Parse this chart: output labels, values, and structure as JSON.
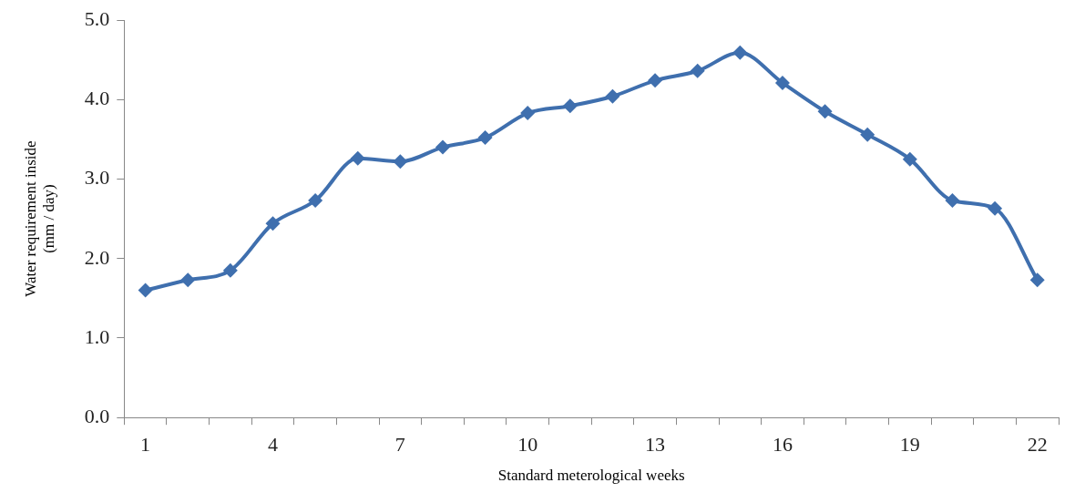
{
  "chart_data": {
    "type": "line",
    "xlabel": "Standard meterological weeks",
    "ylabel": "Water requirement inside\n(mm / day)",
    "categories": [
      "1",
      null,
      null,
      "4",
      null,
      null,
      "7",
      null,
      null,
      "10",
      null,
      null,
      "13",
      null,
      null,
      "16",
      null,
      null,
      "19",
      null,
      null,
      "22"
    ],
    "series": [
      {
        "color": "#3f6fae",
        "values": [
          1.6,
          1.73,
          1.85,
          2.44,
          2.73,
          3.26,
          3.22,
          3.4,
          3.52,
          3.83,
          3.92,
          4.04,
          4.24,
          4.36,
          4.59,
          4.21,
          3.85,
          3.56,
          3.25,
          2.73,
          2.63,
          1.73
        ]
      }
    ],
    "ylim": [
      0,
      5
    ],
    "yticks": [
      {
        "value": 0,
        "label": "0.0"
      },
      {
        "value": 1,
        "label": "1.0"
      },
      {
        "value": 2,
        "label": "2.0"
      },
      {
        "value": 3,
        "label": "3.0"
      },
      {
        "value": 4,
        "label": "4.0"
      },
      {
        "value": 5,
        "label": "5.0"
      }
    ],
    "grid": false,
    "legend": false,
    "marker": "diamond",
    "line_style": "solid"
  }
}
